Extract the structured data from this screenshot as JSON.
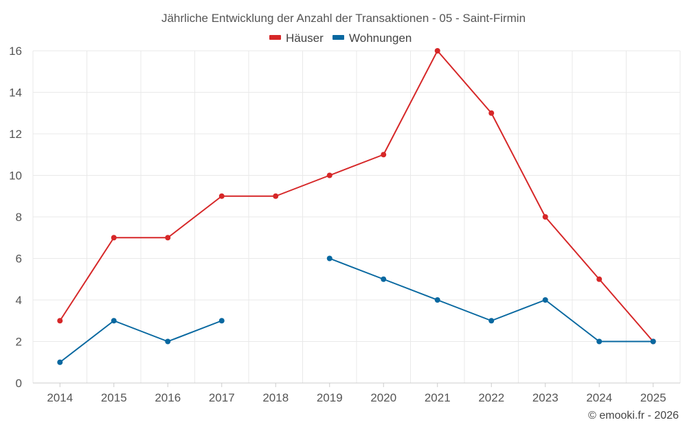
{
  "chart_data": {
    "type": "line",
    "title": "Jährliche Entwicklung der Anzahl der Transaktionen - 05 - Saint-Firmin",
    "categories": [
      "2014",
      "2015",
      "2016",
      "2017",
      "2018",
      "2019",
      "2020",
      "2021",
      "2022",
      "2023",
      "2024",
      "2025"
    ],
    "ylim": [
      0,
      16
    ],
    "yticks": [
      "0",
      "2",
      "4",
      "6",
      "8",
      "10",
      "12",
      "14",
      "16"
    ],
    "grid": true,
    "legend_position": "top-center",
    "series": [
      {
        "name": "Häuser",
        "color": "#d62728",
        "values": [
          3,
          7,
          7,
          9,
          9,
          10,
          11,
          16,
          13,
          8,
          5,
          2
        ]
      },
      {
        "name": "Wohnungen",
        "color": "#0868a0",
        "values": [
          1,
          3,
          2,
          3,
          null,
          6,
          5,
          4,
          3,
          4,
          2,
          2
        ]
      }
    ],
    "credit": "© emooki.fr - 2026"
  }
}
